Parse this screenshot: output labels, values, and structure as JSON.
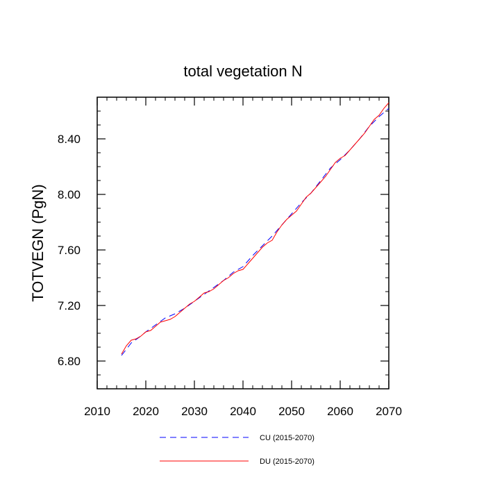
{
  "chart_data": {
    "type": "line",
    "title": "total vegetation N",
    "xlabel": "",
    "ylabel": "TOTVEGN  (PgN)",
    "xlim": [
      2010,
      2070
    ],
    "ylim": [
      6.6,
      8.7
    ],
    "x_ticks": [
      2010,
      2020,
      2030,
      2040,
      2050,
      2060,
      2070
    ],
    "x_tick_labels": [
      "2010",
      "2020",
      "2030",
      "2040",
      "2050",
      "2060",
      "2070"
    ],
    "y_ticks": [
      6.8,
      7.2,
      7.6,
      8.0,
      8.4
    ],
    "y_tick_labels": [
      "6.80",
      "7.20",
      "7.60",
      "8.00",
      "8.40"
    ],
    "grid": false,
    "legend_position": "bottom",
    "series": [
      {
        "name": "CU (2015-2070)",
        "color": "#0000ff",
        "style": "dashed",
        "x": [
          2015,
          2017,
          2019,
          2020,
          2022,
          2024,
          2026,
          2028,
          2030,
          2032,
          2034,
          2036,
          2038,
          2040,
          2042,
          2044,
          2046,
          2048,
          2050,
          2052,
          2054,
          2056,
          2058,
          2060,
          2062,
          2064,
          2066,
          2068,
          2070
        ],
        "values": [
          6.84,
          6.93,
          6.98,
          7.01,
          7.06,
          7.11,
          7.14,
          7.18,
          7.23,
          7.28,
          7.33,
          7.38,
          7.44,
          7.48,
          7.56,
          7.63,
          7.7,
          7.78,
          7.86,
          7.94,
          8.01,
          8.1,
          8.19,
          8.25,
          8.32,
          8.4,
          8.49,
          8.56,
          8.62
        ]
      },
      {
        "name": "DU (2015-2070)",
        "color": "#ff0000",
        "style": "solid",
        "x": [
          2015,
          2016,
          2017,
          2018,
          2019,
          2020,
          2021,
          2022,
          2023,
          2024,
          2025,
          2026,
          2027,
          2028,
          2029,
          2030,
          2031,
          2032,
          2033,
          2034,
          2035,
          2036,
          2037,
          2038,
          2039,
          2040,
          2041,
          2042,
          2043,
          2044,
          2045,
          2046,
          2047,
          2048,
          2049,
          2050,
          2051,
          2052,
          2053,
          2054,
          2055,
          2056,
          2057,
          2058,
          2059,
          2060,
          2061,
          2062,
          2063,
          2064,
          2065,
          2066,
          2067,
          2068,
          2069,
          2070
        ],
        "values": [
          6.85,
          6.91,
          6.95,
          6.96,
          6.98,
          7.01,
          7.02,
          7.05,
          7.08,
          7.09,
          7.1,
          7.12,
          7.15,
          7.18,
          7.21,
          7.23,
          7.26,
          7.29,
          7.3,
          7.32,
          7.35,
          7.38,
          7.4,
          7.43,
          7.45,
          7.46,
          7.5,
          7.54,
          7.58,
          7.62,
          7.65,
          7.67,
          7.73,
          7.78,
          7.82,
          7.85,
          7.88,
          7.93,
          7.98,
          8.01,
          8.05,
          8.09,
          8.13,
          8.18,
          8.23,
          8.26,
          8.28,
          8.32,
          8.36,
          8.4,
          8.44,
          8.49,
          8.54,
          8.57,
          8.62,
          8.66
        ]
      }
    ]
  }
}
